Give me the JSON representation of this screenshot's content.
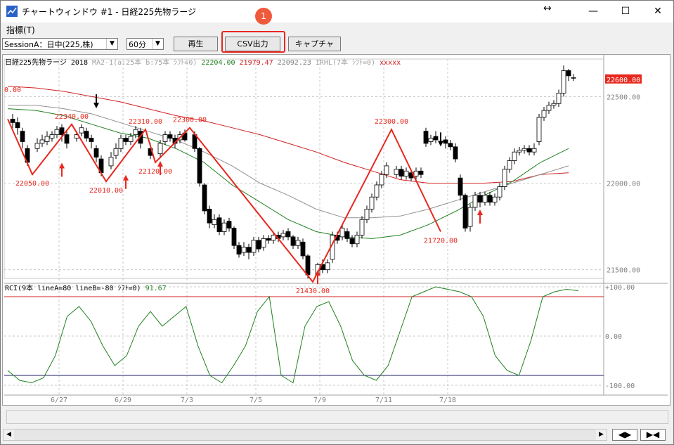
{
  "window": {
    "title": "チャートウィンドウ #1 - 日経225先物ラージ",
    "resize_glyph": "↔",
    "minimize": "—",
    "maximize": "☐",
    "close": "✕"
  },
  "menu": {
    "indicator_label": "指標(T)"
  },
  "toolbar": {
    "session_value": "SessionA：日中(225,株)",
    "interval_value": "60分",
    "play_label": "再生",
    "csv_label": "CSV出力",
    "capture_label": "キャプチャ"
  },
  "callout": {
    "badge": "1",
    "color": "#e8281e"
  },
  "chart": {
    "header": {
      "instrument": "日経225先物ラージ 2018",
      "ma_params": "MA2-1(a:25本 b:75本 ｼﾌﾄ=0)",
      "ma_a_value": "22204.00",
      "ma_b_value": "21979.47",
      "ma_c_value": "22092.23",
      "irhl": "IRHL(7本 ｼﾌﾄ=0)",
      "irhl_value": "xxxxx"
    },
    "left_edge_label": "0.00",
    "price_badge": "22600.00",
    "rci_header": "RCI(9本 lineA=80 lineB=-80 ｼﾌﾄ=0)",
    "rci_value": "91.67",
    "colors": {
      "up": "#ffffff",
      "down": "#000000",
      "zigzag": "#e8281e",
      "ma_red": "#d02020",
      "ma_gray": "#909090",
      "ma_green": "#208020",
      "rci": "#208020",
      "rci_upper": "#d02020",
      "rci_lower": "#202060"
    }
  },
  "chart_data": {
    "type": "line",
    "y_axis_labels": [
      "22500.00",
      "22000.00",
      "21500.00"
    ],
    "y_range": [
      21450,
      22660
    ],
    "rci_axis_labels": [
      "+100.00",
      "0.00",
      "-100.00"
    ],
    "rci_range": [
      -100,
      100
    ],
    "x_axis_labels": [
      "6/27",
      "6/29",
      "7/3",
      "7/5",
      "7/9",
      "7/11",
      "7/18"
    ],
    "zigzag_labels": [
      "22340.00",
      "22050.00",
      "22010.00",
      "22310.00",
      "22120.00",
      "22300.00",
      "21430.00",
      "22300.00",
      "21720.00"
    ],
    "zigzag_points": [
      [
        0,
        22370
      ],
      [
        5,
        22050
      ],
      [
        13,
        22340
      ],
      [
        20,
        22010
      ],
      [
        28,
        22310
      ],
      [
        30,
        22120
      ],
      [
        37,
        22320
      ],
      [
        62,
        21430
      ],
      [
        78,
        22310
      ],
      [
        88,
        21720
      ]
    ],
    "ma_red": [
      22560,
      22550,
      22530,
      22500,
      22470,
      22430,
      22390,
      22360,
      22320,
      22280,
      22230,
      22180,
      22120,
      22070,
      22020,
      22000,
      22000,
      22000,
      22010,
      22050,
      22060
    ],
    "ma_gray": [
      22450,
      22450,
      22430,
      22400,
      22350,
      22300,
      22250,
      22180,
      22100,
      22000,
      21930,
      21850,
      21800,
      21800,
      21810,
      21850,
      21900,
      21950,
      22000,
      22050,
      22100
    ],
    "ma_green": [
      22430,
      22420,
      22390,
      22340,
      22290,
      22260,
      22200,
      22120,
      21990,
      21890,
      21790,
      21720,
      21690,
      21680,
      21700,
      21760,
      21840,
      21930,
      22010,
      22120,
      22200
    ],
    "rci_series": [
      -70,
      -90,
      -95,
      -85,
      -40,
      40,
      60,
      30,
      -20,
      -60,
      -40,
      20,
      50,
      20,
      40,
      60,
      -20,
      -80,
      -95,
      -60,
      -20,
      50,
      80,
      -80,
      -95,
      20,
      60,
      70,
      20,
      -50,
      -80,
      -90,
      -60,
      10,
      80,
      90,
      100,
      95,
      90,
      80,
      40,
      -40,
      -70,
      -80,
      -10,
      80,
      90,
      95,
      92
    ],
    "candles": [
      [
        1,
        22370,
        22350,
        22400,
        22320
      ],
      [
        2,
        22350,
        22320,
        22380,
        22280
      ],
      [
        3,
        22300,
        22240,
        22320,
        22200
      ],
      [
        4,
        22200,
        22120,
        22220,
        22100
      ],
      [
        6,
        22200,
        22230,
        22260,
        22180
      ],
      [
        7,
        22230,
        22250,
        22280,
        22210
      ],
      [
        8,
        22240,
        22270,
        22300,
        22220
      ],
      [
        9,
        22260,
        22280,
        22300,
        22240
      ],
      [
        10,
        22280,
        22310,
        22330,
        22260
      ],
      [
        11,
        22320,
        22280,
        22340,
        22240
      ],
      [
        12,
        22280,
        22230,
        22300,
        22200
      ],
      [
        14,
        22260,
        22280,
        22300,
        22240
      ],
      [
        15,
        22290,
        22320,
        22340,
        22270
      ],
      [
        16,
        22300,
        22260,
        22320,
        22240
      ],
      [
        17,
        22260,
        22240,
        22280,
        22200
      ],
      [
        18,
        22200,
        22150,
        22220,
        22120
      ],
      [
        19,
        22140,
        22060,
        22160,
        22040
      ],
      [
        21,
        22100,
        22150,
        22180,
        22080
      ],
      [
        22,
        22160,
        22200,
        22230,
        22140
      ],
      [
        23,
        22200,
        22260,
        22280,
        22180
      ],
      [
        24,
        22260,
        22240,
        22280,
        22220
      ],
      [
        25,
        22240,
        22270,
        22290,
        22220
      ],
      [
        26,
        22280,
        22310,
        22330,
        22260
      ],
      [
        27,
        22300,
        22230,
        22320,
        22200
      ],
      [
        29,
        22200,
        22160,
        22230,
        22140
      ],
      [
        31,
        22170,
        22230,
        22250,
        22150
      ],
      [
        32,
        22240,
        22280,
        22300,
        22220
      ],
      [
        33,
        22280,
        22260,
        22300,
        22240
      ],
      [
        34,
        22260,
        22230,
        22280,
        22200
      ],
      [
        35,
        22250,
        22280,
        22300,
        22230
      ],
      [
        36,
        22290,
        22250,
        22310,
        22240
      ],
      [
        38,
        22280,
        22200,
        22300,
        22180
      ],
      [
        39,
        22200,
        22000,
        22210,
        21980
      ],
      [
        40,
        21990,
        21840,
        22000,
        21820
      ],
      [
        41,
        21850,
        21770,
        21870,
        21740
      ],
      [
        42,
        21760,
        21790,
        21820,
        21740
      ],
      [
        43,
        21800,
        21720,
        21820,
        21700
      ],
      [
        44,
        21720,
        21770,
        21790,
        21700
      ],
      [
        45,
        21780,
        21740,
        21800,
        21720
      ],
      [
        46,
        21740,
        21640,
        21750,
        21620
      ],
      [
        47,
        21640,
        21590,
        21660,
        21570
      ],
      [
        48,
        21600,
        21630,
        21660,
        21580
      ],
      [
        49,
        21630,
        21600,
        21650,
        21560
      ],
      [
        50,
        21600,
        21670,
        21690,
        21580
      ],
      [
        51,
        21670,
        21620,
        21690,
        21600
      ],
      [
        52,
        21630,
        21680,
        21700,
        21610
      ],
      [
        53,
        21680,
        21670,
        21700,
        21650
      ],
      [
        54,
        21670,
        21700,
        21720,
        21650
      ],
      [
        55,
        21700,
        21680,
        21720,
        21660
      ],
      [
        56,
        21690,
        21710,
        21730,
        21670
      ],
      [
        57,
        21720,
        21690,
        21740,
        21670
      ],
      [
        58,
        21690,
        21640,
        21700,
        21620
      ],
      [
        59,
        21640,
        21670,
        21690,
        21620
      ],
      [
        60,
        21660,
        21580,
        21680,
        21560
      ],
      [
        61,
        21580,
        21470,
        21590,
        21450
      ],
      [
        63,
        21470,
        21530,
        21540,
        21450
      ],
      [
        64,
        21530,
        21500,
        21560,
        21480
      ],
      [
        65,
        21500,
        21540,
        21560,
        21480
      ],
      [
        66,
        21560,
        21700,
        21720,
        21540
      ],
      [
        67,
        21700,
        21670,
        21720,
        21650
      ],
      [
        68,
        21690,
        21740,
        21760,
        21670
      ],
      [
        69,
        21720,
        21680,
        21740,
        21660
      ],
      [
        70,
        21680,
        21650,
        21700,
        21630
      ],
      [
        71,
        21650,
        21700,
        21720,
        21630
      ],
      [
        72,
        21700,
        21790,
        21810,
        21680
      ],
      [
        73,
        21790,
        21850,
        21870,
        21770
      ],
      [
        74,
        21850,
        21920,
        21940,
        21830
      ],
      [
        75,
        21920,
        21990,
        22010,
        21900
      ],
      [
        76,
        21990,
        22050,
        22070,
        21970
      ],
      [
        77,
        22050,
        22100,
        22120,
        22030
      ],
      [
        79,
        22050,
        22080,
        22100,
        22030
      ],
      [
        80,
        22080,
        22040,
        22100,
        22020
      ],
      [
        81,
        22040,
        22070,
        22090,
        22020
      ],
      [
        82,
        22060,
        22030,
        22080,
        22010
      ],
      [
        83,
        22040,
        22070,
        22090,
        22020
      ],
      [
        84,
        22070,
        22050,
        22090,
        22030
      ],
      [
        85,
        22300,
        22230,
        22320,
        22210
      ],
      [
        86,
        22240,
        22260,
        22280,
        22220
      ],
      [
        87,
        22270,
        22250,
        22300,
        22230
      ],
      [
        89,
        22250,
        22230,
        22270,
        22200
      ],
      [
        90,
        22230,
        22210,
        22250,
        22190
      ],
      [
        91,
        22210,
        22140,
        22230,
        22120
      ],
      [
        92,
        22030,
        21930,
        22050,
        21900
      ],
      [
        93,
        21930,
        21740,
        21940,
        21720
      ],
      [
        94,
        21750,
        21860,
        21880,
        21720
      ],
      [
        95,
        21860,
        21930,
        21950,
        21840
      ],
      [
        96,
        21930,
        21890,
        21950,
        21860
      ],
      [
        97,
        21890,
        21930,
        21950,
        21870
      ],
      [
        98,
        21930,
        21890,
        21950,
        21870
      ],
      [
        99,
        21890,
        21920,
        21940,
        21870
      ],
      [
        100,
        21920,
        21980,
        22000,
        21900
      ],
      [
        101,
        21980,
        22080,
        22100,
        21960
      ],
      [
        102,
        22080,
        22130,
        22150,
        22060
      ],
      [
        103,
        22130,
        22180,
        22200,
        22110
      ],
      [
        104,
        22180,
        22190,
        22210,
        22160
      ],
      [
        105,
        22190,
        22200,
        22220,
        22170
      ],
      [
        106,
        22200,
        22180,
        22220,
        22160
      ],
      [
        107,
        22180,
        22200,
        22230,
        22160
      ],
      [
        108,
        22240,
        22380,
        22400,
        22220
      ],
      [
        109,
        22380,
        22420,
        22440,
        22360
      ],
      [
        110,
        22420,
        22450,
        22470,
        22400
      ],
      [
        111,
        22450,
        22460,
        22480,
        22430
      ],
      [
        112,
        22460,
        22520,
        22540,
        22440
      ],
      [
        113,
        22520,
        22650,
        22680,
        22500
      ],
      [
        114,
        22650,
        22620,
        22660,
        22590
      ],
      [
        115,
        22610,
        22610,
        22630,
        22590
      ]
    ],
    "up_arrows": [
      [
        11,
        22110
      ],
      [
        24,
        22040
      ],
      [
        31,
        22120
      ],
      [
        63,
        21490
      ],
      [
        96,
        21840
      ]
    ],
    "down_arrows": [
      [
        18,
        22440
      ],
      [
        88,
        22220
      ]
    ],
    "x_label_positions": [
      11,
      24,
      37,
      51,
      64,
      77,
      90
    ],
    "grid": true
  }
}
